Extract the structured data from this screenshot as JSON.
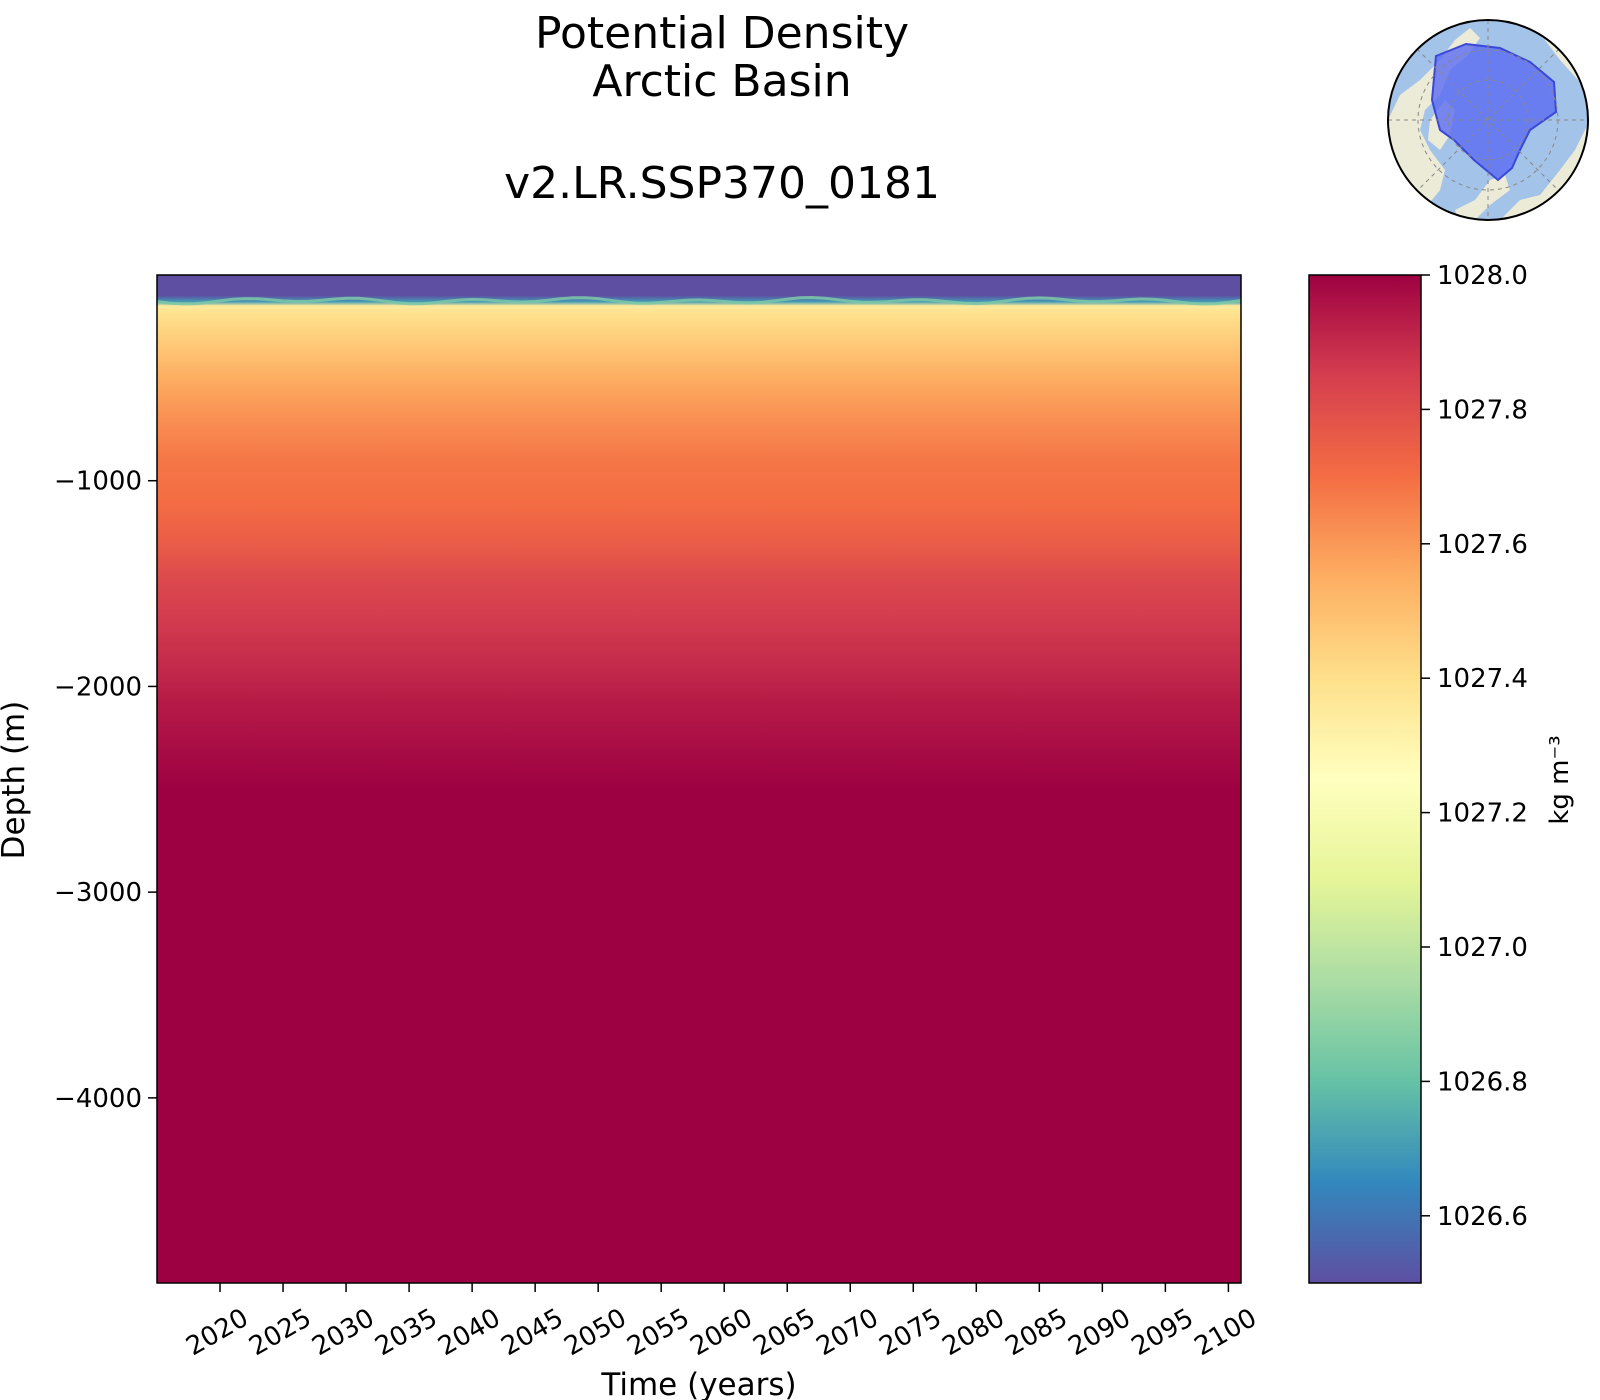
{
  "chart_data": {
    "type": "heatmap",
    "title": "Potential Density",
    "title_line2": "Arctic Basin",
    "subtitle": "v2.LR.SSP370_0181",
    "xlabel": "Time (years)",
    "ylabel": "Depth (m)",
    "xlim": [
      2015,
      2101
    ],
    "ylim": [
      -4900,
      0
    ],
    "x_ticks": [
      2020,
      2025,
      2030,
      2035,
      2040,
      2045,
      2050,
      2055,
      2060,
      2065,
      2070,
      2075,
      2080,
      2085,
      2090,
      2095,
      2100
    ],
    "y_ticks": [
      -1000,
      -2000,
      -3000,
      -4000
    ],
    "colorbar": {
      "label": "kg m⁻³",
      "vmin": 1026.5,
      "vmax": 1028.0,
      "ticks": [
        "1026.6",
        "1026.8",
        "1027.0",
        "1027.2",
        "1027.4",
        "1027.6",
        "1027.8",
        "1028.0"
      ],
      "colormap": "Spectral_r"
    },
    "depth_profile": {
      "depths": [
        0,
        -100,
        -130,
        -150,
        -200,
        -300,
        -500,
        -700,
        -900,
        -1100,
        -1300,
        -1500,
        -1700,
        -1900,
        -2100,
        -2300,
        -2500,
        -4900
      ],
      "values": [
        1026.5,
        1026.5,
        1026.7,
        1027.35,
        1027.4,
        1027.45,
        1027.55,
        1027.62,
        1027.68,
        1027.7,
        1027.75,
        1027.82,
        1027.86,
        1027.9,
        1027.94,
        1027.97,
        1028.0,
        1028.0
      ]
    },
    "grid": false,
    "inset": "polar-map-arctic-region"
  },
  "colors": {
    "spectral_r": [
      "#5e4fa2",
      "#3288bd",
      "#66c2a5",
      "#abdda4",
      "#e6f598",
      "#ffffbf",
      "#fee08b",
      "#fdae61",
      "#f46d43",
      "#d53e4f",
      "#9e0142"
    ],
    "ocean": "#a4c3e8",
    "land": "#ecebd7",
    "region": "#5a6cf2"
  }
}
